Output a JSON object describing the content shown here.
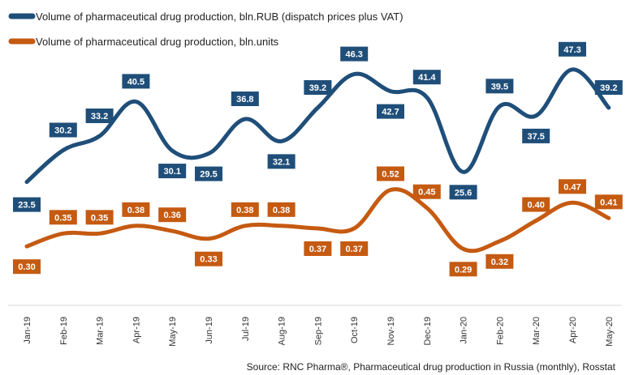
{
  "chart_data": {
    "type": "line",
    "categories": [
      "Jan-19",
      "Feb-19",
      "Mar-19",
      "Apr-19",
      "May-19",
      "Jun-19",
      "Jul-19",
      "Aug-19",
      "Sep-19",
      "Oct-19",
      "Nov-19",
      "Dec-19",
      "Jan-20",
      "Feb-20",
      "Mar-20",
      "Apr-20",
      "May-20"
    ],
    "series": [
      {
        "name": "Volume of pharmaceutical drug production, bln.RUB (dispatch prices plus VAT)",
        "color": "#1f4e79",
        "values": [
          23.5,
          30.2,
          33.2,
          40.5,
          30.1,
          29.5,
          36.8,
          32.1,
          39.2,
          46.3,
          42.7,
          41.4,
          25.6,
          39.5,
          37.5,
          47.3,
          39.2
        ],
        "labels": [
          "23.5",
          "30.2",
          "33.2",
          "40.5",
          "30.1",
          "29.5",
          "36.8",
          "32.1",
          "39.2",
          "46.3",
          "42.7",
          "41.4",
          "25.6",
          "39.5",
          "37.5",
          "47.3",
          "39.2"
        ]
      },
      {
        "name": "Volume of pharmaceutical drug production, bln.units",
        "color": "#c55a11",
        "values": [
          0.3,
          0.35,
          0.35,
          0.38,
          0.36,
          0.33,
          0.38,
          0.38,
          0.37,
          0.37,
          0.52,
          0.45,
          0.29,
          0.32,
          0.4,
          0.47,
          0.41
        ],
        "labels": [
          "0.30",
          "0.35",
          "0.35",
          "0.38",
          "0.36",
          "0.33",
          "0.38",
          "0.38",
          "0.37",
          "0.37",
          "0.52",
          "0.45",
          "0.29",
          "0.32",
          "0.40",
          "0.47",
          "0.41"
        ]
      }
    ],
    "legend_position": "top-left",
    "grid": false,
    "title": "",
    "xlabel": "",
    "ylabel": ""
  },
  "source": "Source: RNC Pharma®,  Pharmaceutical drug production in Russia (monthly), Rosstat"
}
